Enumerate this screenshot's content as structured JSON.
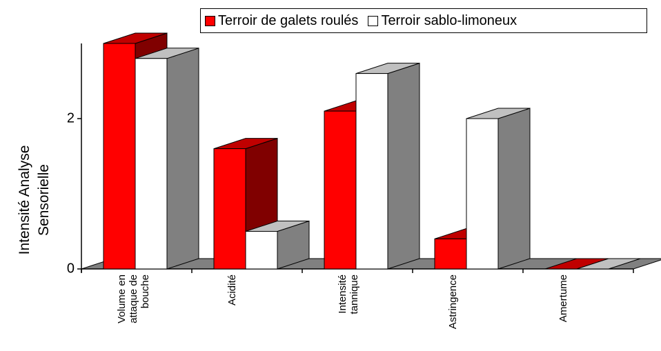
{
  "chart_data": {
    "type": "bar3d",
    "ylabel": "Intensité Analyse Sensorielle",
    "categories": [
      "Volume en attaque de bouche",
      "Acidité",
      "Intensité tannique",
      "Astringence",
      "Amertume"
    ],
    "series": [
      {
        "name": "Terroir de galets roulés",
        "color": "#ff0000",
        "top": "#c00000",
        "side": "#800000",
        "values": [
          3.0,
          1.6,
          2.1,
          0.4,
          0
        ]
      },
      {
        "name": "Terroir sablo-limoneux",
        "color": "#ffffff",
        "top": "#c0c0c0",
        "side": "#808080",
        "values": [
          2.8,
          0.5,
          2.6,
          2.0,
          0
        ]
      }
    ],
    "ylim": [
      0,
      3
    ],
    "yticks": [
      0,
      2
    ],
    "legend": "top-right"
  }
}
